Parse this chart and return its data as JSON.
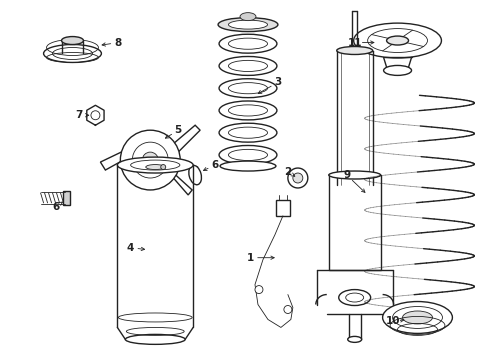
{
  "bg_color": "#ffffff",
  "line_color": "#222222",
  "fig_w": 4.9,
  "fig_h": 3.6,
  "dpi": 100
}
